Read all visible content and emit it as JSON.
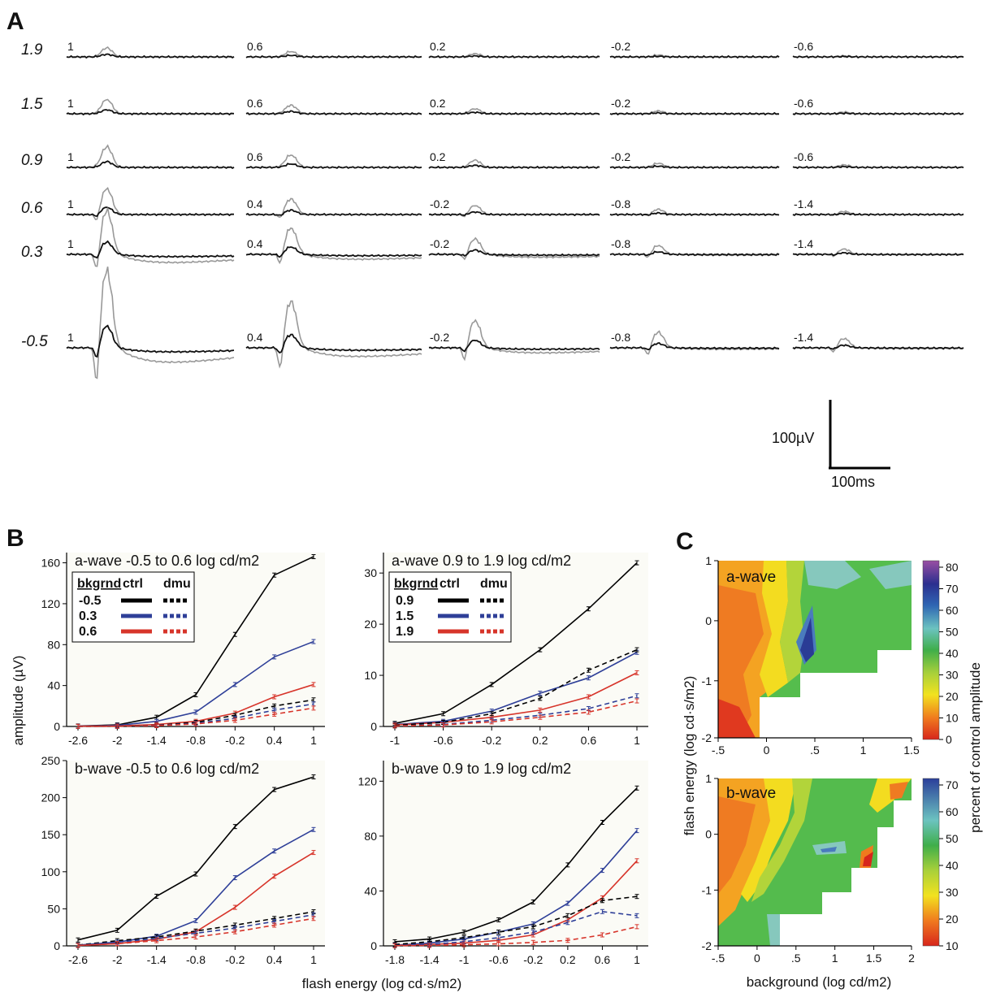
{
  "panels": {
    "a": "A",
    "b": "B",
    "c": "C"
  },
  "panel_a": {
    "row_labels": [
      "1.9",
      "1.5",
      "0.9",
      "0.6",
      "0.3",
      "-0.5"
    ],
    "trace_labels": [
      [
        "1",
        "0.6",
        "0.2",
        "-0.2",
        "-0.6"
      ],
      [
        "1",
        "0.6",
        "0.2",
        "-0.2",
        "-0.6"
      ],
      [
        "1",
        "0.6",
        "0.2",
        "-0.2",
        "-0.6"
      ],
      [
        "1",
        "0.4",
        "-0.2",
        "-0.8",
        "-1.4"
      ],
      [
        "1",
        "0.4",
        "-0.2",
        "-0.8",
        "-1.4"
      ],
      [
        "1",
        "0.4",
        "-0.2",
        "-0.8",
        "-1.4"
      ]
    ],
    "scale_bar": {
      "amplitude": "100µV",
      "time": "100ms"
    },
    "colors": {
      "control": "#999999",
      "dmu": "#111111"
    }
  },
  "chart_data": [
    {
      "type": "line",
      "title": "a-wave -0.5 to 0.6 log cd/m2",
      "x": [
        -2.6,
        -2,
        -1.4,
        -0.8,
        -0.2,
        0.4,
        1
      ],
      "xticks": [
        "-2.6",
        "-2",
        "-1.4",
        "-0.8",
        "-0.2",
        "0.4",
        "1"
      ],
      "ylim": [
        0,
        170
      ],
      "yticks": [
        0,
        40,
        80,
        120,
        160
      ],
      "legend": {
        "header": [
          "bkgrnd",
          "ctrl",
          "dmu"
        ],
        "rows": [
          "-0.5",
          "0.3",
          "0.6"
        ]
      },
      "series": [
        {
          "name": "-0.5 ctrl",
          "color": "#000000",
          "dash": false,
          "values": [
            0.5,
            1.5,
            9,
            31,
            90,
            148,
            166
          ]
        },
        {
          "name": "0.3 ctrl",
          "color": "#2e3f98",
          "dash": false,
          "values": [
            0.3,
            1,
            5,
            14,
            41,
            68,
            83
          ]
        },
        {
          "name": "0.6 ctrl",
          "color": "#d7342a",
          "dash": false,
          "values": [
            0.2,
            0.5,
            2,
            5,
            13,
            29,
            41
          ]
        },
        {
          "name": "-0.5 dmu",
          "color": "#000000",
          "dash": true,
          "values": [
            0.1,
            0.3,
            1.2,
            4,
            11,
            20,
            26
          ]
        },
        {
          "name": "0.3 dmu",
          "color": "#2e3f98",
          "dash": true,
          "values": [
            0.1,
            0.2,
            1,
            3,
            8,
            16,
            22
          ]
        },
        {
          "name": "0.6 dmu",
          "color": "#d7342a",
          "dash": true,
          "values": [
            0.1,
            0.2,
            0.8,
            2.5,
            6,
            12,
            18
          ]
        }
      ]
    },
    {
      "type": "line",
      "title": "a-wave 0.9 to 1.9 log cd/m2",
      "x": [
        -1,
        -0.6,
        -0.2,
        0.2,
        0.6,
        1
      ],
      "xticks": [
        "-1",
        "-0.6",
        "-0.2",
        "0.2",
        "0.6",
        "1"
      ],
      "ylim": [
        0,
        34
      ],
      "yticks": [
        0,
        10,
        20,
        30
      ],
      "legend": {
        "header": [
          "bkgrnd",
          "ctrl",
          "dmu"
        ],
        "rows": [
          "0.9",
          "1.5",
          "1.9"
        ]
      },
      "series": [
        {
          "name": "0.9 ctrl",
          "color": "#000000",
          "dash": false,
          "values": [
            0.6,
            2.5,
            8.2,
            15,
            23,
            32
          ]
        },
        {
          "name": "1.5 ctrl",
          "color": "#2e3f98",
          "dash": false,
          "values": [
            0.4,
            1,
            3,
            6.5,
            9.5,
            14.5
          ]
        },
        {
          "name": "1.9 ctrl",
          "color": "#d7342a",
          "dash": false,
          "values": [
            0.3,
            0.8,
            1.8,
            3.2,
            5.8,
            10.5
          ]
        },
        {
          "name": "0.9 dmu",
          "color": "#000000",
          "dash": true,
          "values": [
            0.2,
            0.8,
            2.5,
            5.5,
            11,
            15
          ]
        },
        {
          "name": "1.5 dmu",
          "color": "#2e3f98",
          "dash": true,
          "values": [
            0.1,
            0.4,
            1.2,
            2.2,
            3.5,
            6
          ]
        },
        {
          "name": "1.9 dmu",
          "color": "#d7342a",
          "dash": true,
          "values": [
            0.1,
            0.3,
            0.9,
            1.8,
            2.8,
            5
          ]
        }
      ]
    },
    {
      "type": "line",
      "title": "b-wave -0.5 to 0.6 log cd/m2",
      "x": [
        -2.6,
        -2,
        -1.4,
        -0.8,
        -0.2,
        0.4,
        1
      ],
      "xticks": [
        "-2.6",
        "-2",
        "-1.4",
        "-0.8",
        "-0.2",
        "0.4",
        "1"
      ],
      "ylim": [
        0,
        250
      ],
      "yticks": [
        0,
        50,
        100,
        150,
        200,
        250
      ],
      "series": [
        {
          "name": "-0.5 ctrl",
          "color": "#000000",
          "dash": false,
          "values": [
            8,
            21,
            67,
            97,
            161,
            211,
            228
          ]
        },
        {
          "name": "0.3 ctrl",
          "color": "#2e3f98",
          "dash": false,
          "values": [
            1,
            5,
            13,
            34,
            92,
            128,
            157
          ]
        },
        {
          "name": "0.6 ctrl",
          "color": "#d7342a",
          "dash": false,
          "values": [
            0.5,
            3,
            9,
            19,
            52,
            94,
            126
          ]
        },
        {
          "name": "-0.5 dmu",
          "color": "#000000",
          "dash": true,
          "values": [
            1,
            7,
            12,
            20,
            28,
            37,
            46
          ]
        },
        {
          "name": "0.3 dmu",
          "color": "#2e3f98",
          "dash": true,
          "values": [
            0.8,
            5,
            10,
            17,
            24,
            33,
            42
          ]
        },
        {
          "name": "0.6 dmu",
          "color": "#d7342a",
          "dash": true,
          "values": [
            0.5,
            3,
            7,
            12,
            19,
            28,
            37
          ]
        }
      ]
    },
    {
      "type": "line",
      "title": "b-wave 0.9 to 1.9 log cd/m2",
      "x": [
        -1.8,
        -1.4,
        -1,
        -0.6,
        -0.2,
        0.2,
        0.6,
        1
      ],
      "xticks": [
        "-1.8",
        "-1.4",
        "-1",
        "-0.6",
        "-0.2",
        "0.2",
        "0.6",
        "1"
      ],
      "ylim": [
        0,
        135
      ],
      "yticks": [
        0,
        40,
        80,
        120
      ],
      "series": [
        {
          "name": "0.9 ctrl",
          "color": "#000000",
          "dash": false,
          "values": [
            3,
            5,
            10,
            19,
            32,
            59,
            90,
            115
          ]
        },
        {
          "name": "1.5 ctrl",
          "color": "#2e3f98",
          "dash": false,
          "values": [
            0.5,
            2,
            5,
            10,
            16,
            31,
            55,
            84
          ]
        },
        {
          "name": "1.9 ctrl",
          "color": "#d7342a",
          "dash": false,
          "values": [
            0.3,
            1,
            2,
            4,
            8,
            19,
            35,
            62
          ]
        },
        {
          "name": "0.9 dmu",
          "color": "#000000",
          "dash": true,
          "values": [
            1,
            3,
            6,
            10,
            14,
            22,
            33,
            36
          ]
        },
        {
          "name": "1.5 dmu",
          "color": "#2e3f98",
          "dash": true,
          "values": [
            0.3,
            1,
            3,
            6,
            10,
            17,
            25,
            22
          ]
        },
        {
          "name": "1.9 dmu",
          "color": "#d7342a",
          "dash": true,
          "values": [
            0.1,
            0.3,
            0.8,
            1.5,
            2.5,
            4,
            8,
            14
          ]
        }
      ]
    },
    {
      "type": "heatmap",
      "title": "a-wave",
      "xticks": [
        "-.5",
        "0",
        ".5",
        "1",
        "1.5"
      ],
      "yticks": [
        "1",
        "0",
        "-1",
        "-2"
      ],
      "colorbar_ticks": [
        "0",
        "10",
        "20",
        "30",
        "40",
        "50",
        "60",
        "70",
        "80"
      ],
      "colorbar_label": "percent of control amplitude"
    },
    {
      "type": "heatmap",
      "title": "b-wave",
      "xticks": [
        "-.5",
        "0",
        ".5",
        "1",
        "1.5",
        "2"
      ],
      "yticks": [
        "1",
        "0",
        "-1",
        "-2"
      ],
      "colorbar_ticks": [
        "10",
        "20",
        "30",
        "40",
        "50",
        "60",
        "70"
      ],
      "colorbar_label": "percent of control amplitude"
    }
  ],
  "axes": {
    "b_ylabel": "amplitude (µV)",
    "b_xlabel": "flash energy (log cd·s/m2)",
    "c_ylabel": "flash energy (log cd·s/m2)",
    "c_xlabel": "background (log cd/m2)"
  }
}
